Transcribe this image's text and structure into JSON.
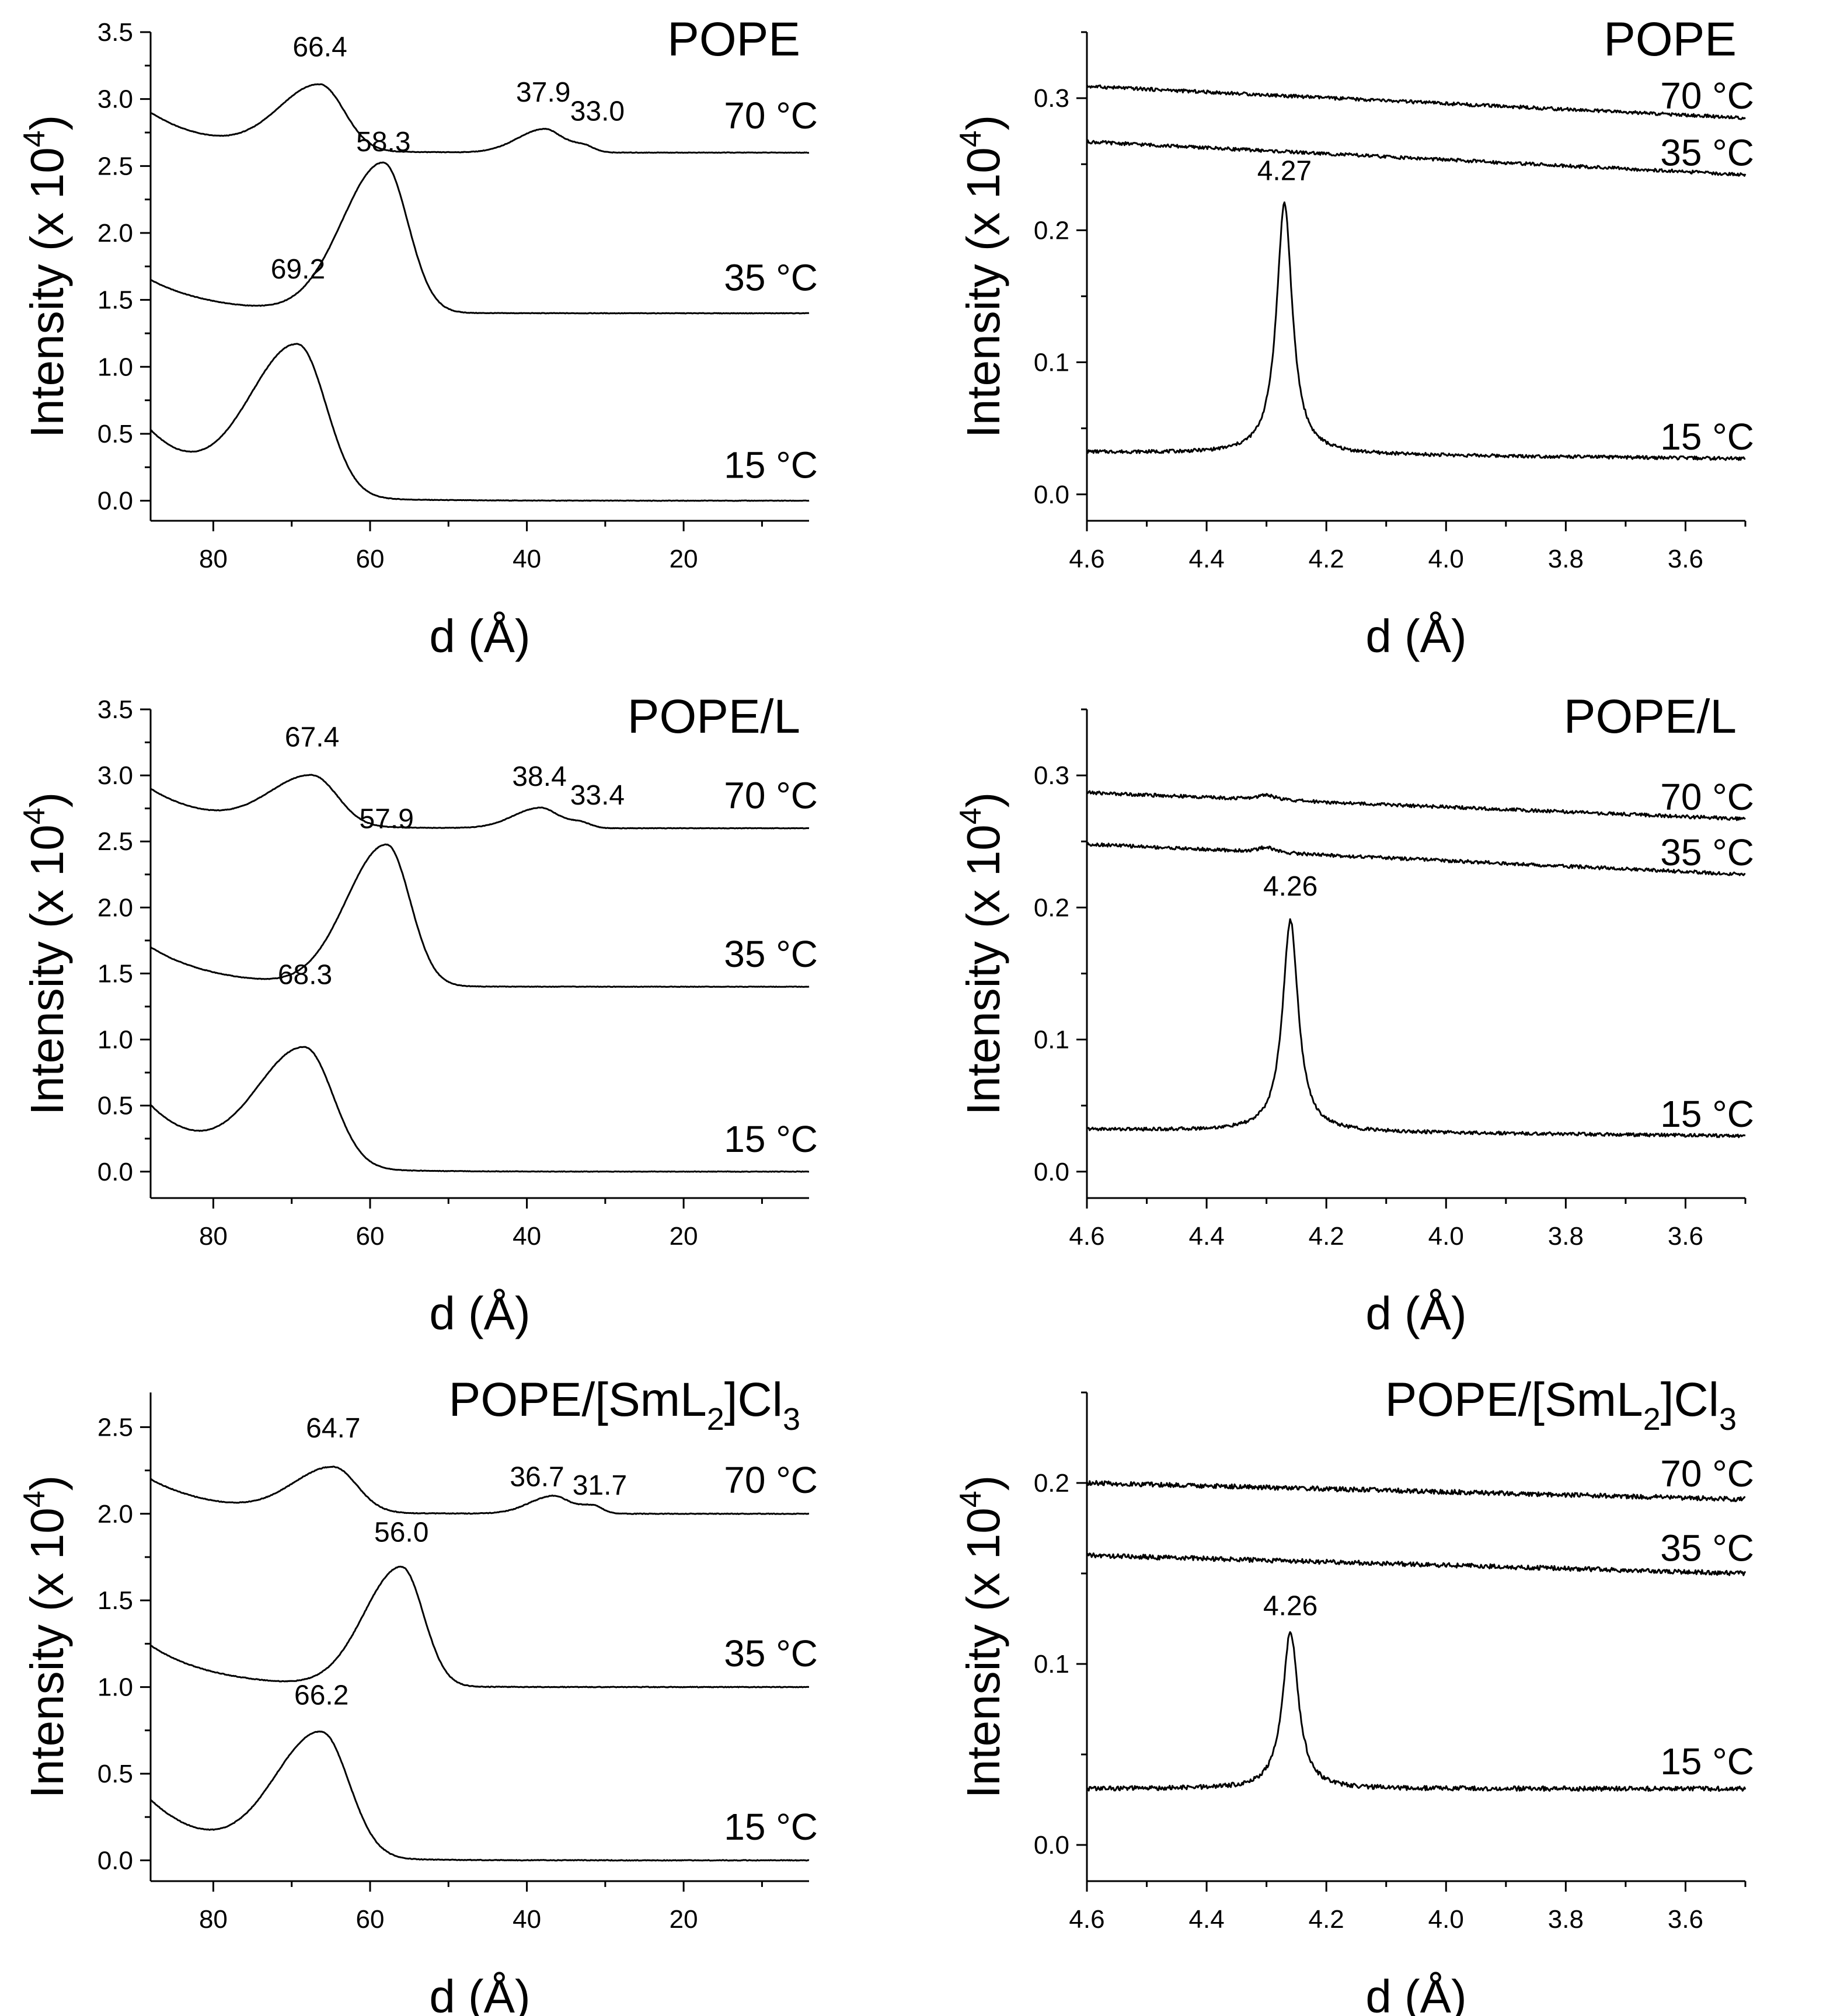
{
  "chart_data": [
    {
      "type": "line",
      "title": "POPE",
      "title_sub": "",
      "title_tail": "",
      "xlabel": "d (Å)",
      "ylabel": "Intensity (x 10",
      "ylabel_sup": "4",
      "ylabel_tail": ")",
      "xlim": [
        88,
        4
      ],
      "ylim": [
        -0.15,
        3.5
      ],
      "xticks": [
        80,
        60,
        40,
        20
      ],
      "xtick_labels": [
        "80",
        "60",
        "40",
        "20"
      ],
      "yticks": [
        0,
        0.5,
        1,
        1.5,
        2,
        2.5,
        3,
        3.5
      ],
      "ytick_labels": [
        "0.0",
        "0.5",
        "1.0",
        "1.5",
        "2.0",
        "2.5",
        "3.0",
        "3.5"
      ],
      "series": [
        {
          "name": "15 °C",
          "label": "15 °C",
          "label_x": 9,
          "label_y": 0.17,
          "base": 0,
          "start": 0.52,
          "peaks": [
            {
              "x": 69.2,
              "height": 1.12,
              "width": 3.6
            }
          ]
        },
        {
          "name": "35 °C",
          "label": "35 °C",
          "label_x": 9,
          "label_y": 1.57,
          "base": 1.4,
          "start": 1.65,
          "peaks": [
            {
              "x": 58.3,
              "height": 1.12,
              "width": 3.1
            }
          ]
        },
        {
          "name": "70 °C",
          "label": "70 °C",
          "label_x": 9,
          "label_y": 2.78,
          "base": 2.6,
          "start": 2.9,
          "peaks": [
            {
              "x": 66.4,
              "height": 0.49,
              "width": 3.1
            },
            {
              "x": 37.9,
              "height": 0.17,
              "width": 2.0
            },
            {
              "x": 33.0,
              "height": 0.06,
              "width": 1.4
            }
          ]
        }
      ],
      "annotations": [
        {
          "text": "69.2",
          "x": 69.2,
          "y": 1.66
        },
        {
          "text": "58.3",
          "x": 58.3,
          "y": 2.61
        },
        {
          "text": "66.4",
          "x": 66.4,
          "y": 3.32
        },
        {
          "text": "37.9",
          "x": 37.9,
          "y": 2.98
        },
        {
          "text": "33.0",
          "x": 31.0,
          "y": 2.84
        }
      ]
    },
    {
      "type": "line",
      "title": "POPE",
      "title_sub": "",
      "title_tail": "",
      "xlabel": "d (Å)",
      "ylabel": "Intensity (x 10",
      "ylabel_sup": "4",
      "ylabel_tail": ")",
      "xlim": [
        4.6,
        3.5
      ],
      "ylim": [
        -0.02,
        0.35
      ],
      "xticks": [
        4.6,
        4.4,
        4.2,
        4.0,
        3.8,
        3.6
      ],
      "xtick_labels": [
        "4.6",
        "4.4",
        "4.2",
        "4.0",
        "3.8",
        "3.6"
      ],
      "yticks": [
        0,
        0.1,
        0.2,
        0.3
      ],
      "ytick_labels": [
        "0.0",
        "0.1",
        "0.2",
        "0.3"
      ],
      "series": [
        {
          "name": "15 °C",
          "label": "15 °C",
          "label_x": 3.5,
          "label_y": 0.034,
          "base": 0.027,
          "start": 0.032,
          "peaks": [
            {
              "x": 4.27,
              "height": 0.19,
              "width": 0.02
            }
          ]
        },
        {
          "name": "35 °C",
          "label": "35 °C",
          "label_x": 3.5,
          "label_y": 0.249,
          "base": 0.242,
          "start": 0.267,
          "peaks": []
        },
        {
          "name": "70 °C",
          "label": "70 °C",
          "label_x": 3.5,
          "label_y": 0.292,
          "base": 0.285,
          "start": 0.309,
          "peaks": []
        }
      ],
      "annotations": [
        {
          "text": "4.27",
          "x": 4.27,
          "y": 0.238
        }
      ]
    },
    {
      "type": "line",
      "title": "POPE/L",
      "title_sub": "",
      "title_tail": "",
      "xlabel": "d (Å)",
      "ylabel": "Intensity (x 10",
      "ylabel_sup": "4",
      "ylabel_tail": ")",
      "xlim": [
        88,
        4
      ],
      "ylim": [
        -0.2,
        3.5
      ],
      "xticks": [
        80,
        60,
        40,
        20
      ],
      "xtick_labels": [
        "80",
        "60",
        "40",
        "20"
      ],
      "yticks": [
        0,
        0.5,
        1,
        1.5,
        2,
        2.5,
        3,
        3.5
      ],
      "ytick_labels": [
        "0.0",
        "0.5",
        "1.0",
        "1.5",
        "2.0",
        "2.5",
        "3.0",
        "3.5"
      ],
      "series": [
        {
          "name": "15 °C",
          "label": "15 °C",
          "label_x": 9,
          "label_y": 0.15,
          "base": 0,
          "start": 0.5,
          "peaks": [
            {
              "x": 68.3,
              "height": 0.9,
              "width": 3.6
            }
          ]
        },
        {
          "name": "35 °C",
          "label": "35 °C",
          "label_x": 9,
          "label_y": 1.55,
          "base": 1.4,
          "start": 1.7,
          "peaks": [
            {
              "x": 57.9,
              "height": 1.07,
              "width": 3.0
            }
          ]
        },
        {
          "name": "70 °C",
          "label": "70 °C",
          "label_x": 9,
          "label_y": 2.75,
          "base": 2.6,
          "start": 2.9,
          "peaks": [
            {
              "x": 67.4,
              "height": 0.38,
              "width": 3.2
            },
            {
              "x": 38.4,
              "height": 0.15,
              "width": 2.0
            },
            {
              "x": 33.4,
              "height": 0.05,
              "width": 1.4
            }
          ]
        }
      ],
      "annotations": [
        {
          "text": "68.3",
          "x": 68.3,
          "y": 1.42
        },
        {
          "text": "57.9",
          "x": 57.9,
          "y": 2.6
        },
        {
          "text": "67.4",
          "x": 67.4,
          "y": 3.22
        },
        {
          "text": "38.4",
          "x": 38.4,
          "y": 2.92
        },
        {
          "text": "33.4",
          "x": 31.0,
          "y": 2.78
        }
      ]
    },
    {
      "type": "line",
      "title": "POPE/L",
      "title_sub": "",
      "title_tail": "",
      "xlabel": "d (Å)",
      "ylabel": "Intensity (x 10",
      "ylabel_sup": "4",
      "ylabel_tail": ")",
      "xlim": [
        4.6,
        3.5
      ],
      "ylim": [
        -0.02,
        0.35
      ],
      "xticks": [
        4.6,
        4.4,
        4.2,
        4.0,
        3.8,
        3.6
      ],
      "xtick_labels": [
        "4.6",
        "4.4",
        "4.2",
        "4.0",
        "3.8",
        "3.6"
      ],
      "yticks": [
        0,
        0.1,
        0.2,
        0.3
      ],
      "ytick_labels": [
        "0.0",
        "0.1",
        "0.2",
        "0.3"
      ],
      "series": [
        {
          "name": "15 °C",
          "label": "15 °C",
          "label_x": 3.5,
          "label_y": 0.034,
          "base": 0.027,
          "start": 0.032,
          "peaks": [
            {
              "x": 4.26,
              "height": 0.16,
              "width": 0.02
            }
          ]
        },
        {
          "name": "35 °C",
          "label": "35 °C",
          "label_x": 3.5,
          "label_y": 0.232,
          "base": 0.225,
          "start": 0.248,
          "peaks": [
            {
              "x": 4.3,
              "height": 0.004,
              "width": 0.02
            }
          ]
        },
        {
          "name": "70 °C",
          "label": "70 °C",
          "label_x": 3.5,
          "label_y": 0.274,
          "base": 0.267,
          "start": 0.287,
          "peaks": [
            {
              "x": 4.3,
              "height": 0.004,
              "width": 0.02
            }
          ]
        }
      ],
      "annotations": [
        {
          "text": "4.26",
          "x": 4.26,
          "y": 0.209
        }
      ]
    },
    {
      "type": "line",
      "title": "POPE/[SmL",
      "title_sub": "2",
      "title_tail": "]Cl",
      "title_tail_sub": "3",
      "xlabel": "d (Å)",
      "ylabel": "Intensity (x 10",
      "ylabel_sup": "4",
      "ylabel_tail": ")",
      "xlim": [
        88,
        4
      ],
      "ylim": [
        -0.12,
        2.7
      ],
      "xticks": [
        80,
        60,
        40,
        20
      ],
      "xtick_labels": [
        "80",
        "60",
        "40",
        "20"
      ],
      "yticks": [
        0,
        0.5,
        1,
        1.5,
        2,
        2.5
      ],
      "ytick_labels": [
        "0.0",
        "0.5",
        "1.0",
        "1.5",
        "2.0",
        "2.5"
      ],
      "series": [
        {
          "name": "15 °C",
          "label": "15 °C",
          "label_x": 9,
          "label_y": 0.12,
          "base": 0,
          "start": 0.35,
          "peaks": [
            {
              "x": 66.2,
              "height": 0.72,
              "width": 3.5
            }
          ]
        },
        {
          "name": "35 °C",
          "label": "35 °C",
          "label_x": 9,
          "label_y": 1.12,
          "base": 1.0,
          "start": 1.24,
          "peaks": [
            {
              "x": 56.0,
              "height": 0.69,
              "width": 2.8
            }
          ]
        },
        {
          "name": "70 °C",
          "label": "70 °C",
          "label_x": 9,
          "label_y": 2.12,
          "base": 2.0,
          "start": 2.2,
          "peaks": [
            {
              "x": 64.7,
              "height": 0.26,
              "width": 3.0
            },
            {
              "x": 36.7,
              "height": 0.1,
              "width": 1.8
            },
            {
              "x": 31.7,
              "height": 0.05,
              "width": 1.3
            }
          ]
        }
      ],
      "annotations": [
        {
          "text": "66.2",
          "x": 66.2,
          "y": 0.9
        },
        {
          "text": "56.0",
          "x": 56.0,
          "y": 1.84
        },
        {
          "text": "64.7",
          "x": 64.7,
          "y": 2.44
        },
        {
          "text": "36.7",
          "x": 38.7,
          "y": 2.16
        },
        {
          "text": "31.7",
          "x": 30.7,
          "y": 2.11
        }
      ]
    },
    {
      "type": "line",
      "title": "POPE/[SmL",
      "title_sub": "2",
      "title_tail": "]Cl",
      "title_tail_sub": "3",
      "xlabel": "d (Å)",
      "ylabel": "Intensity (x 10",
      "ylabel_sup": "4",
      "ylabel_tail": ")",
      "xlim": [
        4.6,
        3.5
      ],
      "ylim": [
        -0.02,
        0.25
      ],
      "xticks": [
        4.6,
        4.4,
        4.2,
        4.0,
        3.8,
        3.6
      ],
      "xtick_labels": [
        "4.6",
        "4.4",
        "4.2",
        "4.0",
        "3.8",
        "3.6"
      ],
      "yticks": [
        0,
        0.1,
        0.2
      ],
      "ytick_labels": [
        "0.0",
        "0.1",
        "0.2"
      ],
      "series": [
        {
          "name": "15 °C",
          "label": "15 °C",
          "label_x": 3.5,
          "label_y": 0.039,
          "base": 0.031,
          "start": 0.031,
          "peaks": [
            {
              "x": 4.26,
              "height": 0.087,
              "width": 0.02
            }
          ]
        },
        {
          "name": "35 °C",
          "label": "35 °C",
          "label_x": 3.5,
          "label_y": 0.157,
          "base": 0.15,
          "start": 0.16,
          "peaks": []
        },
        {
          "name": "70 °C",
          "label": "70 °C",
          "label_x": 3.5,
          "label_y": 0.198,
          "base": 0.191,
          "start": 0.2,
          "peaks": []
        }
      ],
      "annotations": [
        {
          "text": "4.26",
          "x": 4.26,
          "y": 0.127
        }
      ]
    }
  ]
}
